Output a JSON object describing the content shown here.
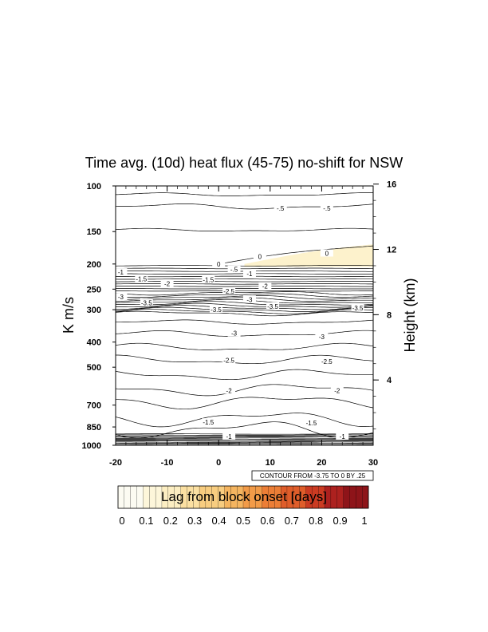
{
  "chart_data": {
    "type": "contour",
    "title": "Time avg. (10d) heat flux (45-75) no-shift for NSW",
    "xlabel": "Lag from block onset [days]",
    "ylabel": "K m/s",
    "ylabel_right": "Height (km)",
    "xlim": [
      -20,
      30
    ],
    "x_ticks": [
      -20,
      -10,
      0,
      10,
      20,
      30
    ],
    "y_scale": "log-pressure",
    "ylim": [
      1000,
      100
    ],
    "y_ticks": [
      100,
      150,
      200,
      250,
      300,
      400,
      500,
      700,
      850,
      1000
    ],
    "y_ticks_right": [
      4,
      8,
      12,
      16
    ],
    "contour_info": "CONTOUR FROM -3.75 TO 0 BY .25",
    "contour_labels": [
      {
        "x": 12,
        "p": 122,
        "text": "-.5"
      },
      {
        "x": 21,
        "p": 122,
        "text": "-.5"
      },
      {
        "x": 21,
        "p": 182,
        "text": "0"
      },
      {
        "x": 8,
        "p": 187,
        "text": "0"
      },
      {
        "x": 0,
        "p": 200,
        "text": "0"
      },
      {
        "x": 3,
        "p": 210,
        "text": "-.5"
      },
      {
        "x": 6,
        "p": 218,
        "text": "-1"
      },
      {
        "x": -19,
        "p": 215,
        "text": "-1"
      },
      {
        "x": -15,
        "p": 228,
        "text": "-1.5"
      },
      {
        "x": -2,
        "p": 230,
        "text": "-1.5"
      },
      {
        "x": -10,
        "p": 238,
        "text": "-2"
      },
      {
        "x": 9,
        "p": 243,
        "text": "-2"
      },
      {
        "x": 2,
        "p": 255,
        "text": "-2.5"
      },
      {
        "x": -19,
        "p": 268,
        "text": "-3"
      },
      {
        "x": 6,
        "p": 274,
        "text": "-3"
      },
      {
        "x": -14,
        "p": 282,
        "text": "-3.5"
      },
      {
        "x": -0.5,
        "p": 300,
        "text": "-3.5"
      },
      {
        "x": 10.5,
        "p": 291,
        "text": "-3.5"
      },
      {
        "x": 27,
        "p": 296,
        "text": "-3.5"
      },
      {
        "x": 3,
        "p": 370,
        "text": "-3"
      },
      {
        "x": 20,
        "p": 382,
        "text": "-3"
      },
      {
        "x": 2,
        "p": 470,
        "text": "-2.5"
      },
      {
        "x": 21,
        "p": 475,
        "text": "-2.5"
      },
      {
        "x": 2,
        "p": 615,
        "text": "-2"
      },
      {
        "x": 23,
        "p": 615,
        "text": "-2"
      },
      {
        "x": -2,
        "p": 815,
        "text": "-1.5"
      },
      {
        "x": 18,
        "p": 820,
        "text": "-1.5"
      },
      {
        "x": 2,
        "p": 925,
        "text": "-1"
      },
      {
        "x": 24,
        "p": 925,
        "text": "-1"
      }
    ],
    "shading": {
      "region": "0-contour above 200 hPa, lag 5 to 30",
      "color": "#fdf2cc"
    },
    "colorbar": {
      "title": "Lag from block onset [days]",
      "labels": [
        "0",
        "0.1",
        "0.2",
        "0.3",
        "0.4",
        "0.5",
        "0.6",
        "0.7",
        "0.8",
        "0.9",
        "1"
      ],
      "colors": [
        "#fcfbf2",
        "#fdf6da",
        "#fceec2",
        "#fbe0a2",
        "#f8cd80",
        "#f5b560",
        "#f29b48",
        "#ec7e36",
        "#df5d2a",
        "#cb3b22",
        "#ad211f",
        "#8e1419"
      ]
    }
  }
}
